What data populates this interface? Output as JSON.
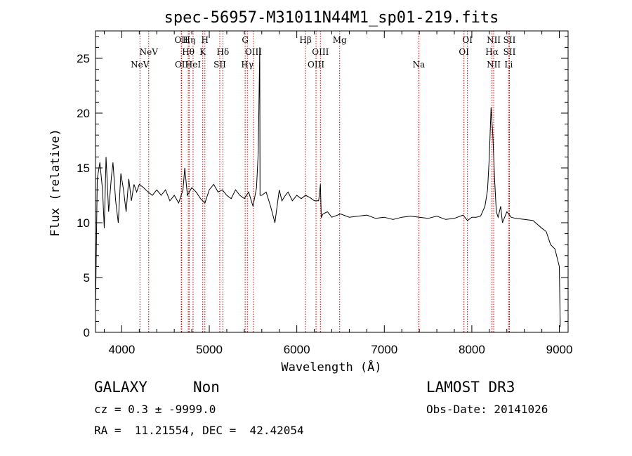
{
  "chart_data": {
    "type": "line",
    "title": "spec-56957-M31011N44M1_sp01-219.fits",
    "xlabel": "Wavelength (Å)",
    "ylabel": "Flux (relative)",
    "xlim": [
      3700,
      9100
    ],
    "ylim": [
      0,
      27.5
    ],
    "xticks": [
      4000,
      5000,
      6000,
      7000,
      8000,
      9000
    ],
    "yticks": [
      0,
      5,
      10,
      15,
      20,
      25
    ],
    "grid": false,
    "series": [
      {
        "name": "spectrum",
        "x": [
          3700,
          3720,
          3750,
          3780,
          3800,
          3820,
          3850,
          3880,
          3900,
          3930,
          3960,
          3990,
          4020,
          4050,
          4080,
          4110,
          4140,
          4170,
          4200,
          4250,
          4300,
          4350,
          4400,
          4450,
          4500,
          4550,
          4600,
          4650,
          4700,
          4720,
          4750,
          4800,
          4850,
          4900,
          4950,
          5000,
          5050,
          5100,
          5150,
          5200,
          5250,
          5300,
          5350,
          5400,
          5450,
          5500,
          5540,
          5560,
          5577,
          5580,
          5600,
          5650,
          5700,
          5750,
          5800,
          5830,
          5870,
          5900,
          5950,
          6000,
          6050,
          6100,
          6150,
          6200,
          6250,
          6270,
          6280,
          6300,
          6350,
          6400,
          6500,
          6600,
          6700,
          6800,
          6900,
          7000,
          7100,
          7200,
          7300,
          7400,
          7500,
          7600,
          7700,
          7800,
          7900,
          7950,
          8000,
          8050,
          8100,
          8150,
          8180,
          8200,
          8220,
          8240,
          8260,
          8280,
          8300,
          8330,
          8350,
          8400,
          8450,
          8500,
          8600,
          8700,
          8800,
          8850,
          8900,
          8950,
          9000,
          9010
        ],
        "values": [
          2,
          14,
          15.5,
          13,
          9.5,
          16,
          11,
          14,
          15.5,
          12,
          10,
          14.5,
          13,
          11,
          14,
          12,
          13.5,
          12.8,
          13.5,
          13.2,
          12.8,
          12.5,
          13,
          12.5,
          13,
          12,
          12.5,
          11.8,
          13,
          15,
          12.5,
          13.2,
          12.8,
          12.2,
          11.8,
          13,
          13.5,
          12.8,
          13,
          12.5,
          12.2,
          13,
          12.5,
          12.2,
          12.8,
          11.5,
          13.2,
          16.5,
          26,
          12.5,
          12.5,
          12.8,
          11.5,
          10,
          13,
          12,
          12.5,
          12.8,
          12,
          12.5,
          12.2,
          12.5,
          12.3,
          12,
          12,
          13.5,
          10.5,
          10.8,
          11,
          10.5,
          10.8,
          10.5,
          10.6,
          10.7,
          10.4,
          10.5,
          10.3,
          10.5,
          10.6,
          10.5,
          10.4,
          10.6,
          10.3,
          10.4,
          10.7,
          10.2,
          10.5,
          10.5,
          10.6,
          11.5,
          13,
          16,
          20.5,
          18,
          14,
          11,
          10.5,
          11.5,
          10,
          11,
          10.5,
          10.4,
          10.3,
          10.2,
          9.5,
          9.2,
          8,
          7.6,
          6,
          0.5
        ]
      }
    ],
    "lines": [
      {
        "name": "NeV",
        "wave": 4208,
        "row": 3
      },
      {
        "name": "NeV",
        "wave": 4308,
        "row": 2
      },
      {
        "name": "OII",
        "wave": 4680,
        "row": 1
      },
      {
        "name": "OII",
        "wave": 4684,
        "row": 3
      },
      {
        "name": "Hη",
        "wave": 4770,
        "row": 1
      },
      {
        "name": "Hθ",
        "wave": 4760,
        "row": 2
      },
      {
        "name": "HeI",
        "wave": 4815,
        "row": 3
      },
      {
        "name": "H",
        "wave": 4950,
        "row": 1
      },
      {
        "name": "K",
        "wave": 4925,
        "row": 2
      },
      {
        "name": "SII",
        "wave": 5120,
        "row": 3
      },
      {
        "name": "Hδ",
        "wave": 5155,
        "row": 2
      },
      {
        "name": "G",
        "wave": 5410,
        "row": 1
      },
      {
        "name": "Hγ",
        "wave": 5435,
        "row": 3
      },
      {
        "name": "OIII",
        "wave": 5505,
        "row": 2
      },
      {
        "name": "Hβ",
        "wave": 6100,
        "row": 1
      },
      {
        "name": "OIII",
        "wave": 6220,
        "row": 3
      },
      {
        "name": "OIII",
        "wave": 6270,
        "row": 2
      },
      {
        "name": "Mg",
        "wave": 6490,
        "row": 1
      },
      {
        "name": "Na",
        "wave": 7395,
        "row": 3
      },
      {
        "name": "OI",
        "wave": 7950,
        "row": 1
      },
      {
        "name": "OI",
        "wave": 7910,
        "row": 2
      },
      {
        "name": "NII",
        "wave": 8250,
        "row": 1
      },
      {
        "name": "Hα",
        "wave": 8230,
        "row": 2
      },
      {
        "name": "NII",
        "wave": 8250,
        "row": 3
      },
      {
        "name": "SII",
        "wave": 8430,
        "row": 1
      },
      {
        "name": "SII",
        "wave": 8430,
        "row": 2
      },
      {
        "name": "Li",
        "wave": 8420,
        "row": 3
      }
    ],
    "line_color": "#cc0000",
    "spectrum_color": "#000000"
  },
  "info": {
    "class_label": "GALAXY",
    "subclass_label": "Non",
    "survey": "LAMOST DR3",
    "cz": "cz = 0.3 ± -9999.0",
    "obs_date": "Obs-Date: 20141026",
    "coords": "RA =  11.21554, DEC =  42.42054"
  }
}
